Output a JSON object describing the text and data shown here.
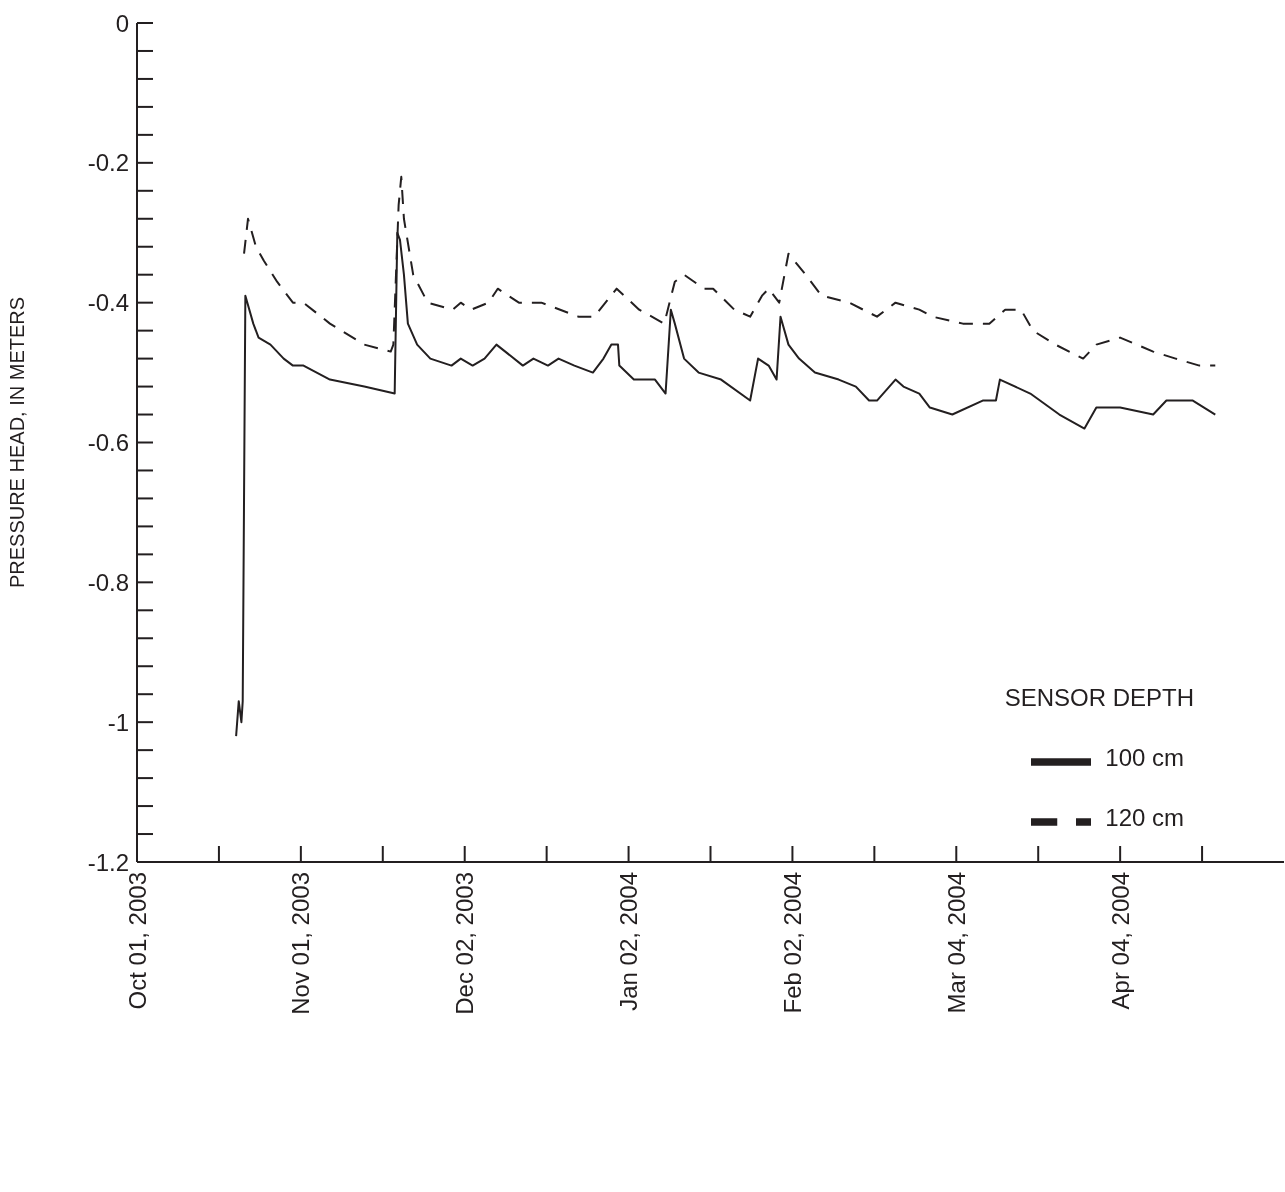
{
  "chart_data": {
    "type": "line",
    "ylabel": "PRESSURE HEAD, IN METERS",
    "legend_title": "SENSOR DEPTH",
    "legend": "bottom right",
    "xlim": [
      "2003-10-01",
      "2004-05-05"
    ],
    "xticks": [
      {
        "value": "2003-10-01",
        "label": "Oct 01, 2003"
      },
      {
        "value": "2003-10-16T12:00",
        "label": null
      },
      {
        "value": "2003-11-01",
        "label": "Nov 01, 2003"
      },
      {
        "value": "2003-11-16T12:00",
        "label": null
      },
      {
        "value": "2003-12-02",
        "label": "Dec 02, 2003"
      },
      {
        "value": "2003-12-17T12:00",
        "label": null
      },
      {
        "value": "2004-01-02",
        "label": "Jan 02, 2004"
      },
      {
        "value": "2004-01-17T12:00",
        "label": null
      },
      {
        "value": "2004-02-02",
        "label": "Feb 02, 2004"
      },
      {
        "value": "2004-02-17T12:00",
        "label": null
      },
      {
        "value": "2004-03-04",
        "label": "Mar 04, 2004"
      },
      {
        "value": "2004-03-19T12:00",
        "label": null
      },
      {
        "value": "2004-04-04",
        "label": "Apr 04, 2004"
      },
      {
        "value": "2004-04-19T12:00",
        "label": null
      }
    ],
    "ylim": [
      -1.2,
      0
    ],
    "yticks": [
      -1.2,
      {
        "value": -1.16,
        "label": null
      },
      {
        "value": -1.12,
        "label": null
      },
      {
        "value": -1.08,
        "label": null
      },
      {
        "value": -1.04,
        "label": null
      },
      -1,
      {
        "value": -0.96,
        "label": null
      },
      {
        "value": -0.92,
        "label": null
      },
      {
        "value": -0.88,
        "label": null
      },
      {
        "value": -0.84,
        "label": null
      },
      -0.8,
      {
        "value": -0.76,
        "label": null
      },
      {
        "value": -0.72,
        "label": null
      },
      {
        "value": -0.68,
        "label": null
      },
      {
        "value": -0.64,
        "label": null
      },
      -0.6,
      {
        "value": -0.56,
        "label": null
      },
      {
        "value": -0.52,
        "label": null
      },
      {
        "value": -0.48,
        "label": null
      },
      {
        "value": -0.44,
        "label": null
      },
      -0.4,
      {
        "value": -0.36,
        "label": null
      },
      {
        "value": -0.32,
        "label": null
      },
      {
        "value": -0.28,
        "label": null
      },
      {
        "value": -0.24,
        "label": null
      },
      -0.2,
      {
        "value": -0.16,
        "label": null
      },
      {
        "value": -0.12,
        "label": null
      },
      {
        "value": -0.08,
        "label": null
      },
      {
        "value": -0.04,
        "label": null
      },
      0
    ],
    "series": [
      {
        "name": "100 cm",
        "color": "#231f20",
        "line_style": "solid",
        "x": [
          "2003-10-19T18:00",
          "2003-10-20T06:00",
          "2003-10-20T18:00",
          "2003-10-21",
          "2003-10-21T12:00",
          "2003-10-23",
          "2003-10-24",
          "2003-10-26T06:00",
          "2003-10-28T18:00",
          "2003-10-30T12:00",
          "2003-11-01T12:00",
          "2003-11-06T12:00",
          "2003-11-13",
          "2003-11-18T18:00",
          "2003-11-19T06:00",
          "2003-11-19T18:00",
          "2003-11-20T12:00",
          "2003-11-21T06:00",
          "2003-11-23",
          "2003-11-25T12:00",
          "2003-11-29T12:00",
          "2003-12-01T06:00",
          "2003-12-03T12:00",
          "2003-12-05T18:00",
          "2003-12-08",
          "2003-12-13",
          "2003-12-15",
          "2003-12-17T18:00",
          "2003-12-19T18:00",
          "2003-12-22T18:00",
          "2003-12-26T06:00",
          "2003-12-28T06:00",
          "2003-12-29T18:00",
          "2003-12-31",
          "2003-12-31T06:00",
          "2004-01-03",
          "2004-01-07",
          "2004-01-09",
          "2004-01-10",
          "2004-01-10T18:00",
          "2004-01-12T12:00",
          "2004-01-15T06:00",
          "2004-01-19T12:00",
          "2004-01-25",
          "2004-01-26T12:00",
          "2004-01-28T12:00",
          "2004-01-30",
          "2004-01-30T18:00",
          "2004-02-01T06:00",
          "2004-02-03T06:00",
          "2004-02-06T06:00",
          "2004-02-10T18:00",
          "2004-02-14",
          "2004-02-16T12:00",
          "2004-02-18",
          "2004-02-21T12:00",
          "2004-02-23",
          "2004-02-26",
          "2004-02-28",
          "2004-03-03T06:00",
          "2004-03-09",
          "2004-03-11T12:00",
          "2004-03-12T06:00",
          "2004-03-18",
          "2004-03-23T12:00",
          "2004-03-28T06:00",
          "2004-03-30T12:00",
          "2004-04-04",
          "2004-04-10T06:00",
          "2004-04-12T18:00",
          "2004-04-17T18:00",
          "2004-04-22"
        ],
        "values": [
          -1.02,
          -0.97,
          -1.0,
          -0.97,
          -0.39,
          -0.43,
          -0.45,
          -0.46,
          -0.48,
          -0.49,
          -0.49,
          -0.51,
          -0.52,
          -0.53,
          -0.3,
          -0.31,
          -0.36,
          -0.43,
          -0.46,
          -0.48,
          -0.49,
          -0.48,
          -0.49,
          -0.48,
          -0.46,
          -0.49,
          -0.48,
          -0.49,
          -0.48,
          -0.49,
          -0.5,
          -0.48,
          -0.46,
          -0.46,
          -0.49,
          -0.51,
          -0.51,
          -0.53,
          -0.41,
          -0.43,
          -0.48,
          -0.5,
          -0.51,
          -0.54,
          -0.48,
          -0.49,
          -0.51,
          -0.42,
          -0.46,
          -0.48,
          -0.5,
          -0.51,
          -0.52,
          -0.54,
          -0.54,
          -0.51,
          -0.52,
          -0.53,
          -0.55,
          -0.56,
          -0.54,
          -0.54,
          -0.51,
          -0.53,
          -0.56,
          -0.58,
          -0.55,
          -0.55,
          -0.56,
          -0.54,
          -0.54,
          -0.56
        ]
      },
      {
        "name": "120 cm",
        "color": "#231f20",
        "line_style": "dashed",
        "x": [
          "2003-10-21T06:00",
          "2003-10-22",
          "2003-10-23T12:00",
          "2003-10-25",
          "2003-10-27T12:00",
          "2003-10-30T12:00",
          "2003-11-01T12:00",
          "2003-11-06T12:00",
          "2003-11-13",
          "2003-11-18",
          "2003-11-18T12:00",
          "2003-11-19T12:00",
          "2003-11-20",
          "2003-11-20T12:00",
          "2003-11-22T06:00",
          "2003-11-25",
          "2003-11-29T18:00",
          "2003-12-01T06:00",
          "2003-12-03T06:00",
          "2003-12-06T12:00",
          "2003-12-08T06:00",
          "2003-12-12T06:00",
          "2003-12-14",
          "2003-12-16T12:00",
          "2003-12-23T12:00",
          "2003-12-26T12:00",
          "2003-12-30T18:00",
          "2004-01-04",
          "2004-01-08T18:00",
          "2004-01-10T18:00",
          "2004-01-12T12:00",
          "2004-01-16T06:00",
          "2004-01-18",
          "2004-01-22",
          "2004-01-25",
          "2004-01-27T06:00",
          "2004-01-28T12:00",
          "2004-01-30T12:00",
          "2004-02-01T06:00",
          "2004-02-04T12:00",
          "2004-02-07T12:00",
          "2004-02-12T18:00",
          "2004-02-18",
          "2004-02-21T12:00",
          "2004-02-26",
          "2004-02-28T12:00",
          "2004-03-05T06:00",
          "2004-03-10T06:00",
          "2004-03-13T06:00",
          "2004-03-16T06:00",
          "2004-03-18T12:00",
          "2004-03-22T18:00",
          "2004-03-28",
          "2004-03-30T12:00",
          "2004-04-04",
          "2004-04-10T06:00",
          "2004-04-14T12:00",
          "2004-04-19",
          "2004-04-22"
        ],
        "values": [
          -0.33,
          -0.28,
          -0.32,
          -0.34,
          -0.37,
          -0.4,
          -0.4,
          -0.43,
          -0.46,
          -0.47,
          -0.46,
          -0.26,
          -0.22,
          -0.28,
          -0.36,
          -0.4,
          -0.41,
          -0.4,
          -0.41,
          -0.4,
          -0.38,
          -0.4,
          -0.4,
          -0.4,
          -0.42,
          -0.42,
          -0.38,
          -0.41,
          -0.43,
          -0.37,
          -0.36,
          -0.38,
          -0.38,
          -0.41,
          -0.42,
          -0.39,
          -0.38,
          -0.4,
          -0.33,
          -0.36,
          -0.39,
          -0.4,
          -0.42,
          -0.4,
          -0.41,
          -0.42,
          -0.43,
          -0.43,
          -0.41,
          -0.41,
          -0.44,
          -0.46,
          -0.48,
          -0.46,
          -0.45,
          -0.47,
          -0.48,
          -0.49,
          -0.49
        ]
      }
    ]
  }
}
